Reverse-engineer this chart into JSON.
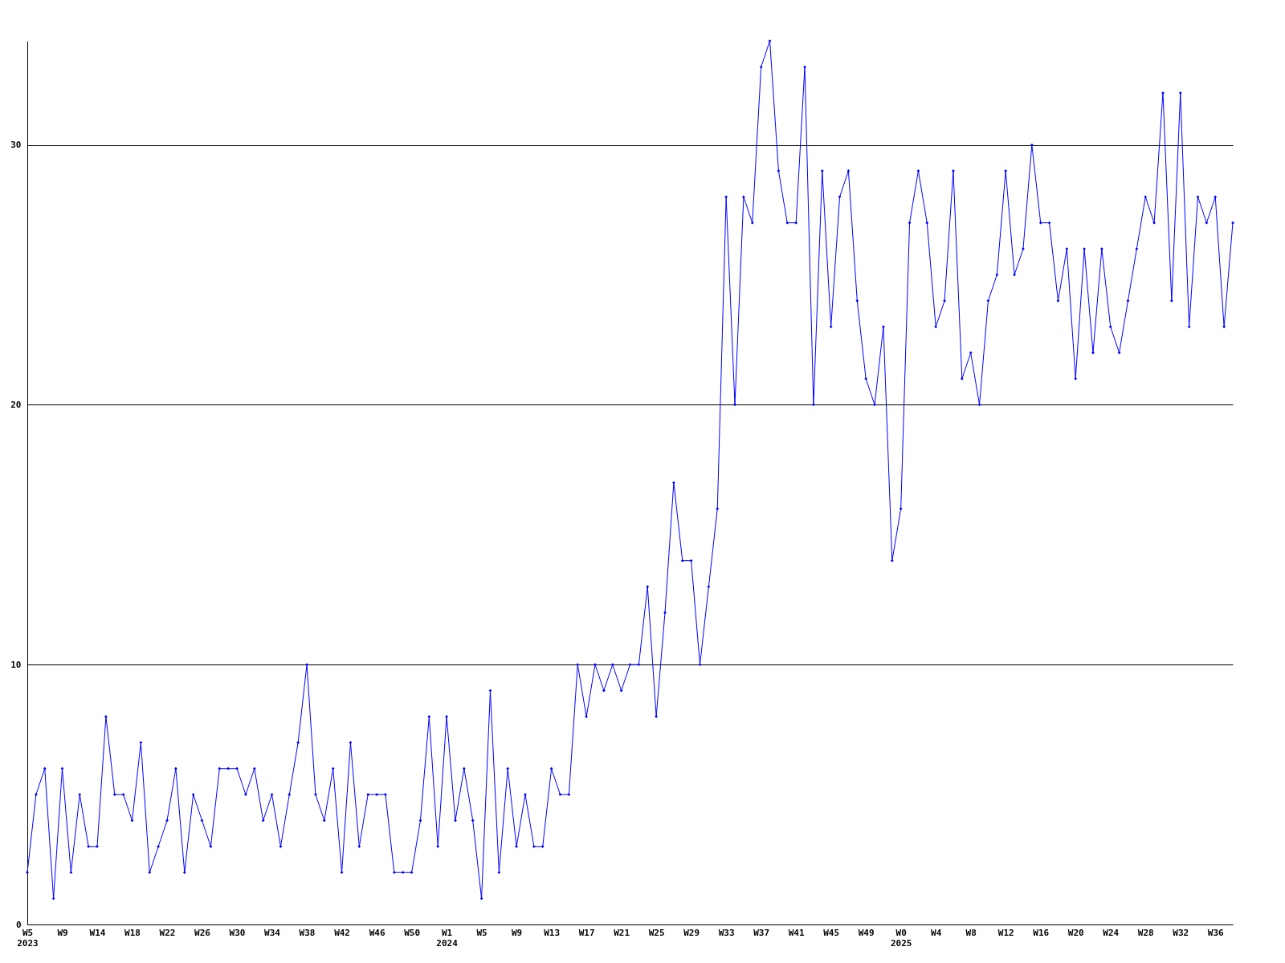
{
  "chart_data": {
    "type": "line",
    "categories": [
      "W5\n2023",
      null,
      null,
      null,
      "W9",
      null,
      null,
      null,
      "W14",
      null,
      null,
      null,
      "W18",
      null,
      null,
      null,
      "W22",
      null,
      null,
      null,
      "W26",
      null,
      null,
      null,
      "W30",
      null,
      null,
      null,
      "W34",
      null,
      null,
      null,
      "W38",
      null,
      null,
      null,
      "W42",
      null,
      null,
      null,
      "W46",
      null,
      null,
      null,
      "W50",
      null,
      null,
      null,
      "W1\n2024",
      null,
      null,
      null,
      "W5",
      null,
      null,
      null,
      "W9",
      null,
      null,
      null,
      "W13",
      null,
      null,
      null,
      "W17",
      null,
      null,
      null,
      "W21",
      null,
      null,
      null,
      "W25",
      null,
      null,
      null,
      "W29",
      null,
      null,
      null,
      "W33",
      null,
      null,
      null,
      "W37",
      null,
      null,
      null,
      "W41",
      null,
      null,
      null,
      "W45",
      null,
      null,
      null,
      "W49",
      null,
      null,
      null,
      "W0\n2025",
      null,
      null,
      null,
      "W4",
      null,
      null,
      null,
      "W8",
      null,
      null,
      null,
      "W12",
      null,
      null,
      null,
      "W16",
      null,
      null,
      null,
      "W20",
      null,
      null,
      null,
      "W24",
      null,
      null,
      null,
      "W28",
      null,
      null,
      null,
      "W32",
      null,
      null,
      null,
      "W36",
      null,
      null
    ],
    "series": [
      {
        "color": "#0000ff",
        "values": [
          2,
          5,
          6,
          1,
          6,
          2,
          5,
          3,
          3,
          8,
          5,
          5,
          4,
          7,
          2,
          3,
          4,
          6,
          2,
          5,
          4,
          3,
          6,
          6,
          6,
          5,
          6,
          4,
          5,
          3,
          5,
          7,
          10,
          5,
          4,
          6,
          2,
          7,
          3,
          5,
          5,
          5,
          2,
          2,
          2,
          4,
          8,
          3,
          8,
          4,
          6,
          4,
          1,
          9,
          2,
          6,
          3,
          5,
          3,
          3,
          6,
          5,
          5,
          10,
          8,
          10,
          9,
          10,
          9,
          10,
          10,
          13,
          8,
          12,
          17,
          14,
          14,
          10,
          13,
          16,
          28,
          20,
          28,
          27,
          33,
          34,
          29,
          27,
          27,
          33,
          20,
          29,
          23,
          28,
          29,
          24,
          21,
          20,
          23,
          14,
          16,
          27,
          29,
          27,
          23,
          24,
          29,
          21,
          22,
          20,
          24,
          25,
          29,
          25,
          26,
          30,
          27,
          27,
          24,
          26,
          21,
          26,
          22,
          26,
          23,
          22,
          24,
          26,
          28,
          27,
          32,
          24,
          32,
          23,
          28,
          27,
          28,
          23,
          27
        ]
      }
    ],
    "ylim": [
      0,
      34
    ],
    "yticks": [
      0,
      10,
      20,
      30
    ],
    "grid": "y",
    "marker": "diamond",
    "line_style": "solid"
  }
}
